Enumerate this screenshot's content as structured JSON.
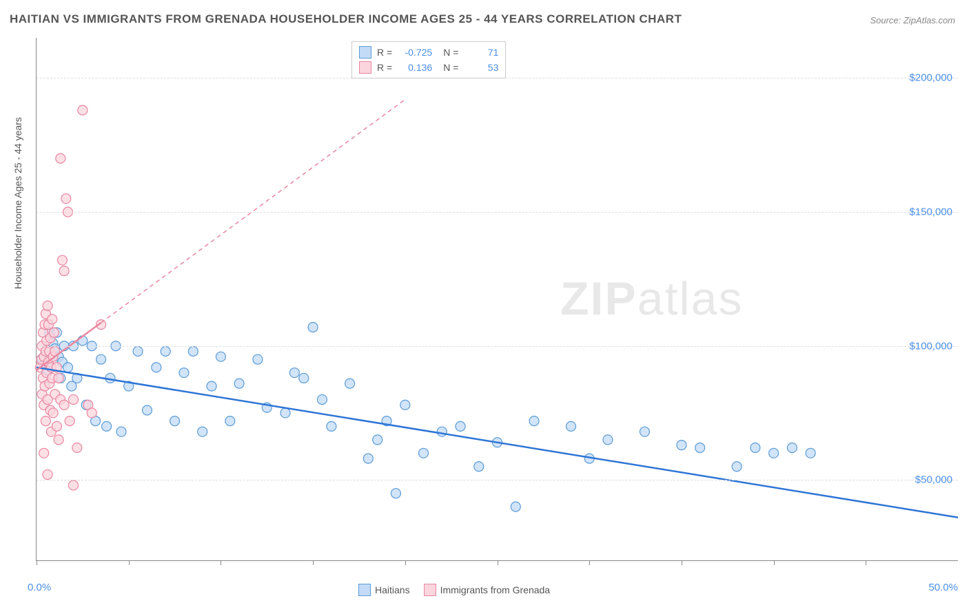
{
  "title": "HAITIAN VS IMMIGRANTS FROM GRENADA HOUSEHOLDER INCOME AGES 25 - 44 YEARS CORRELATION CHART",
  "source": "Source: ZipAtlas.com",
  "y_axis_label": "Householder Income Ages 25 - 44 years",
  "watermark_bold": "ZIP",
  "watermark_rest": "atlas",
  "chart": {
    "type": "scatter",
    "xlim": [
      0,
      50
    ],
    "ylim": [
      20000,
      215000
    ],
    "x_min_label": "0.0%",
    "x_max_label": "50.0%",
    "x_ticks": [
      0,
      5,
      10,
      15,
      20,
      25,
      30,
      35,
      40,
      45
    ],
    "y_ticks": [
      50000,
      100000,
      150000,
      200000
    ],
    "y_tick_labels": [
      "$50,000",
      "$100,000",
      "$150,000",
      "$200,000"
    ],
    "grid_color": "#dddddd",
    "axis_color": "#888888",
    "background_color": "#ffffff",
    "marker_radius": 7,
    "marker_stroke_width": 1.2,
    "line_width": 2.5,
    "series": [
      {
        "name": "Haitians",
        "label": "Haitians",
        "fill": "#c3dbf7",
        "stroke": "#5b9bd5",
        "line_color": "#2e75d6",
        "R": "-0.725",
        "N": "71",
        "trend": {
          "x1": 0,
          "y1": 92000,
          "x2": 50,
          "y2": 36000,
          "dashed": false
        },
        "points": [
          [
            0.3,
            95000
          ],
          [
            0.4,
            93000
          ],
          [
            0.5,
            98000
          ],
          [
            0.6,
            91000
          ],
          [
            0.7,
            105000
          ],
          [
            0.8,
            92000
          ],
          [
            0.9,
            101000
          ],
          [
            1.0,
            99000
          ],
          [
            1.1,
            105000
          ],
          [
            1.2,
            96000
          ],
          [
            1.3,
            88000
          ],
          [
            1.4,
            94000
          ],
          [
            1.5,
            100000
          ],
          [
            1.7,
            92000
          ],
          [
            1.9,
            85000
          ],
          [
            2.0,
            100000
          ],
          [
            2.2,
            88000
          ],
          [
            2.5,
            102000
          ],
          [
            2.7,
            78000
          ],
          [
            3.0,
            100000
          ],
          [
            3.2,
            72000
          ],
          [
            3.5,
            95000
          ],
          [
            3.8,
            70000
          ],
          [
            4.0,
            88000
          ],
          [
            4.3,
            100000
          ],
          [
            4.6,
            68000
          ],
          [
            5.0,
            85000
          ],
          [
            5.5,
            98000
          ],
          [
            6.0,
            76000
          ],
          [
            6.5,
            92000
          ],
          [
            7.0,
            98000
          ],
          [
            7.5,
            72000
          ],
          [
            8.0,
            90000
          ],
          [
            8.5,
            98000
          ],
          [
            9.0,
            68000
          ],
          [
            9.5,
            85000
          ],
          [
            10.0,
            96000
          ],
          [
            10.5,
            72000
          ],
          [
            11.0,
            86000
          ],
          [
            12.0,
            95000
          ],
          [
            12.5,
            77000
          ],
          [
            13.5,
            75000
          ],
          [
            14.0,
            90000
          ],
          [
            14.5,
            88000
          ],
          [
            15.0,
            107000
          ],
          [
            15.5,
            80000
          ],
          [
            16.0,
            70000
          ],
          [
            17.0,
            86000
          ],
          [
            18.0,
            58000
          ],
          [
            18.5,
            65000
          ],
          [
            19.0,
            72000
          ],
          [
            19.5,
            45000
          ],
          [
            20.0,
            78000
          ],
          [
            21.0,
            60000
          ],
          [
            22.0,
            68000
          ],
          [
            23.0,
            70000
          ],
          [
            24.0,
            55000
          ],
          [
            25.0,
            64000
          ],
          [
            26.0,
            40000
          ],
          [
            27.0,
            72000
          ],
          [
            29.0,
            70000
          ],
          [
            30.0,
            58000
          ],
          [
            31.0,
            65000
          ],
          [
            33.0,
            68000
          ],
          [
            35.0,
            63000
          ],
          [
            36.0,
            62000
          ],
          [
            38.0,
            55000
          ],
          [
            39.0,
            62000
          ],
          [
            40.0,
            60000
          ],
          [
            41.0,
            62000
          ],
          [
            42.0,
            60000
          ]
        ]
      },
      {
        "name": "Immigrants from Grenada",
        "label": "Immigrants from Grenada",
        "fill": "#fbd5de",
        "stroke": "#e986a0",
        "line_color": "#e986a0",
        "R": "0.136",
        "N": "53",
        "trend": {
          "x1": 0,
          "y1": 91000,
          "x2": 20,
          "y2": 192000,
          "dashed": true,
          "solid_until": 3.5
        },
        "points": [
          [
            0.2,
            92000
          ],
          [
            0.25,
            95000
          ],
          [
            0.3,
            82000
          ],
          [
            0.3,
            100000
          ],
          [
            0.35,
            88000
          ],
          [
            0.35,
            105000
          ],
          [
            0.4,
            78000
          ],
          [
            0.4,
            96000
          ],
          [
            0.45,
            108000
          ],
          [
            0.45,
            85000
          ],
          [
            0.5,
            98000
          ],
          [
            0.5,
            112000
          ],
          [
            0.5,
            72000
          ],
          [
            0.55,
            90000
          ],
          [
            0.55,
            102000
          ],
          [
            0.6,
            115000
          ],
          [
            0.6,
            80000
          ],
          [
            0.65,
            94000
          ],
          [
            0.65,
            108000
          ],
          [
            0.7,
            86000
          ],
          [
            0.7,
            98000
          ],
          [
            0.75,
            76000
          ],
          [
            0.75,
            103000
          ],
          [
            0.8,
            92000
          ],
          [
            0.8,
            68000
          ],
          [
            0.85,
            110000
          ],
          [
            0.85,
            88000
          ],
          [
            0.9,
            96000
          ],
          [
            0.9,
            75000
          ],
          [
            0.95,
            105000
          ],
          [
            1.0,
            82000
          ],
          [
            1.0,
            98000
          ],
          [
            1.1,
            70000
          ],
          [
            1.1,
            92000
          ],
          [
            1.2,
            88000
          ],
          [
            1.2,
            65000
          ],
          [
            1.3,
            80000
          ],
          [
            1.4,
            132000
          ],
          [
            1.5,
            128000
          ],
          [
            1.5,
            78000
          ],
          [
            1.6,
            155000
          ],
          [
            1.7,
            150000
          ],
          [
            1.8,
            72000
          ],
          [
            2.0,
            80000
          ],
          [
            2.0,
            48000
          ],
          [
            2.2,
            62000
          ],
          [
            2.5,
            188000
          ],
          [
            2.8,
            78000
          ],
          [
            3.0,
            75000
          ],
          [
            1.3,
            170000
          ],
          [
            0.6,
            52000
          ],
          [
            0.4,
            60000
          ],
          [
            3.5,
            108000
          ]
        ]
      }
    ]
  },
  "legend_bottom": {
    "items": [
      {
        "label": "Haitians",
        "fill": "#c3dbf7",
        "stroke": "#5b9bd5"
      },
      {
        "label": "Immigrants from Grenada",
        "fill": "#fbd5de",
        "stroke": "#e986a0"
      }
    ]
  },
  "colors": {
    "title": "#555555",
    "source": "#888888",
    "tick_label": "#4a8fe7",
    "watermark": "#e8e8e8"
  }
}
